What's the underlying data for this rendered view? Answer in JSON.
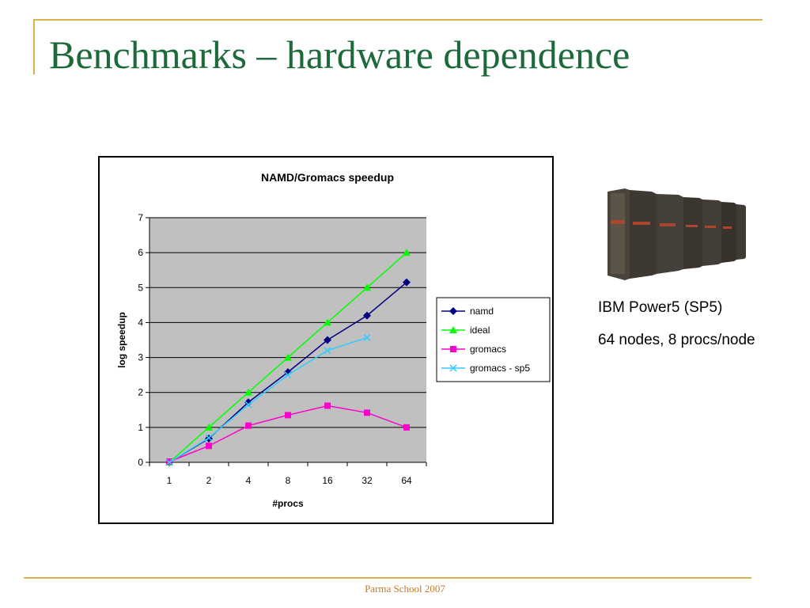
{
  "slide": {
    "title": "Benchmarks – hardware dependence",
    "captions": [
      "IBM Power5 (SP5)",
      "64 nodes, 8 procs/node"
    ],
    "footer": "Parma School 2007"
  },
  "colors": {
    "title": "#1c6a3a",
    "frame": "#d9b34a",
    "footer": "#c97a2a",
    "plot_bg": "#c0c0c0"
  },
  "chart_data": {
    "type": "line",
    "title": "NAMD/Gromacs speedup",
    "xlabel": "#procs",
    "ylabel": "log speedup",
    "categories": [
      "1",
      "2",
      "4",
      "8",
      "16",
      "32",
      "64"
    ],
    "ylim": [
      0,
      7
    ],
    "yticks": [
      "0",
      "1",
      "2",
      "3",
      "4",
      "5",
      "6",
      "7"
    ],
    "grid": true,
    "legend_position": "right",
    "series": [
      {
        "name": "namd",
        "values": [
          0,
          0.68,
          1.72,
          2.58,
          3.5,
          4.2,
          5.15
        ],
        "color": "#000080",
        "marker": "diamond"
      },
      {
        "name": "ideal",
        "values": [
          0,
          1,
          2,
          3,
          4,
          5,
          6
        ],
        "color": "#00ff00",
        "marker": "triangle"
      },
      {
        "name": "gromacs",
        "values": [
          0.02,
          0.47,
          1.05,
          1.35,
          1.62,
          1.42,
          1.0
        ],
        "color": "#ff00cc",
        "marker": "square"
      },
      {
        "name": "gromacs - sp5",
        "values": [
          0,
          0.7,
          1.65,
          2.5,
          3.2,
          3.57,
          null
        ],
        "color": "#33ccff",
        "marker": "x"
      }
    ]
  }
}
